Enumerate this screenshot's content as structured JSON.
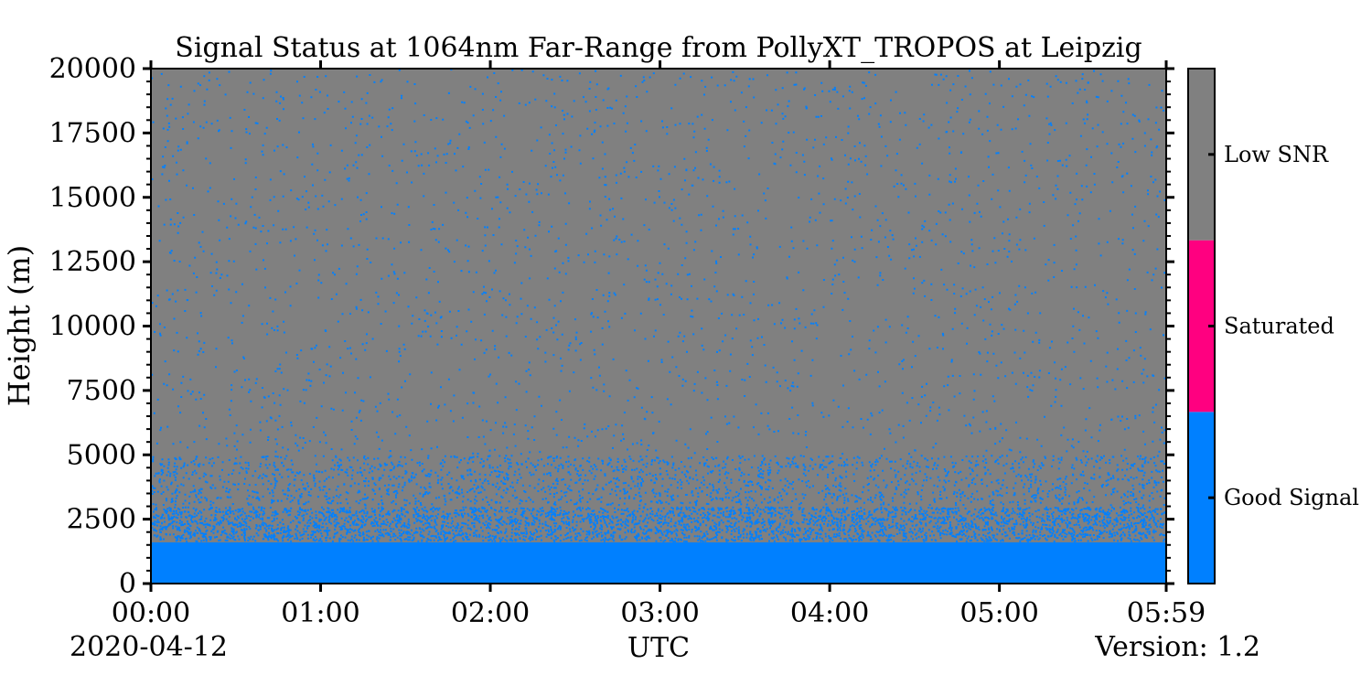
{
  "chart_data": {
    "type": "heatmap",
    "title": "Signal Status at 1064nm Far-Range from PollyXT_TROPOS at Leipzig",
    "xlabel": "UTC",
    "ylabel": "Height (m)",
    "date": "2020-04-12",
    "version": "Version: 1.2",
    "x_ticks": [
      "00:00",
      "01:00",
      "02:00",
      "03:00",
      "04:00",
      "05:00",
      "05:59"
    ],
    "x_range_hours": [
      0,
      5.983
    ],
    "y_ticks": [
      0,
      2500,
      5000,
      7500,
      10000,
      12500,
      15000,
      17500,
      20000
    ],
    "y_range": [
      0,
      20000
    ],
    "colors": {
      "good_signal": "#0080ff",
      "saturated": "#ff0080",
      "low_snr": "#808080"
    },
    "colorbar": [
      "Good Signal",
      "Saturated",
      "Low SNR"
    ],
    "layers": [
      {
        "status": "Good Signal",
        "height_range": [
          0,
          1600
        ],
        "good_fraction": 1.0
      },
      {
        "status": "Mixed",
        "height_range": [
          1600,
          3000
        ],
        "good_fraction": 0.55
      },
      {
        "status": "Mixed",
        "height_range": [
          3000,
          5000
        ],
        "good_fraction": 0.2
      },
      {
        "status": "Low SNR",
        "height_range": [
          5000,
          20000
        ],
        "good_fraction": 0.03
      }
    ]
  }
}
